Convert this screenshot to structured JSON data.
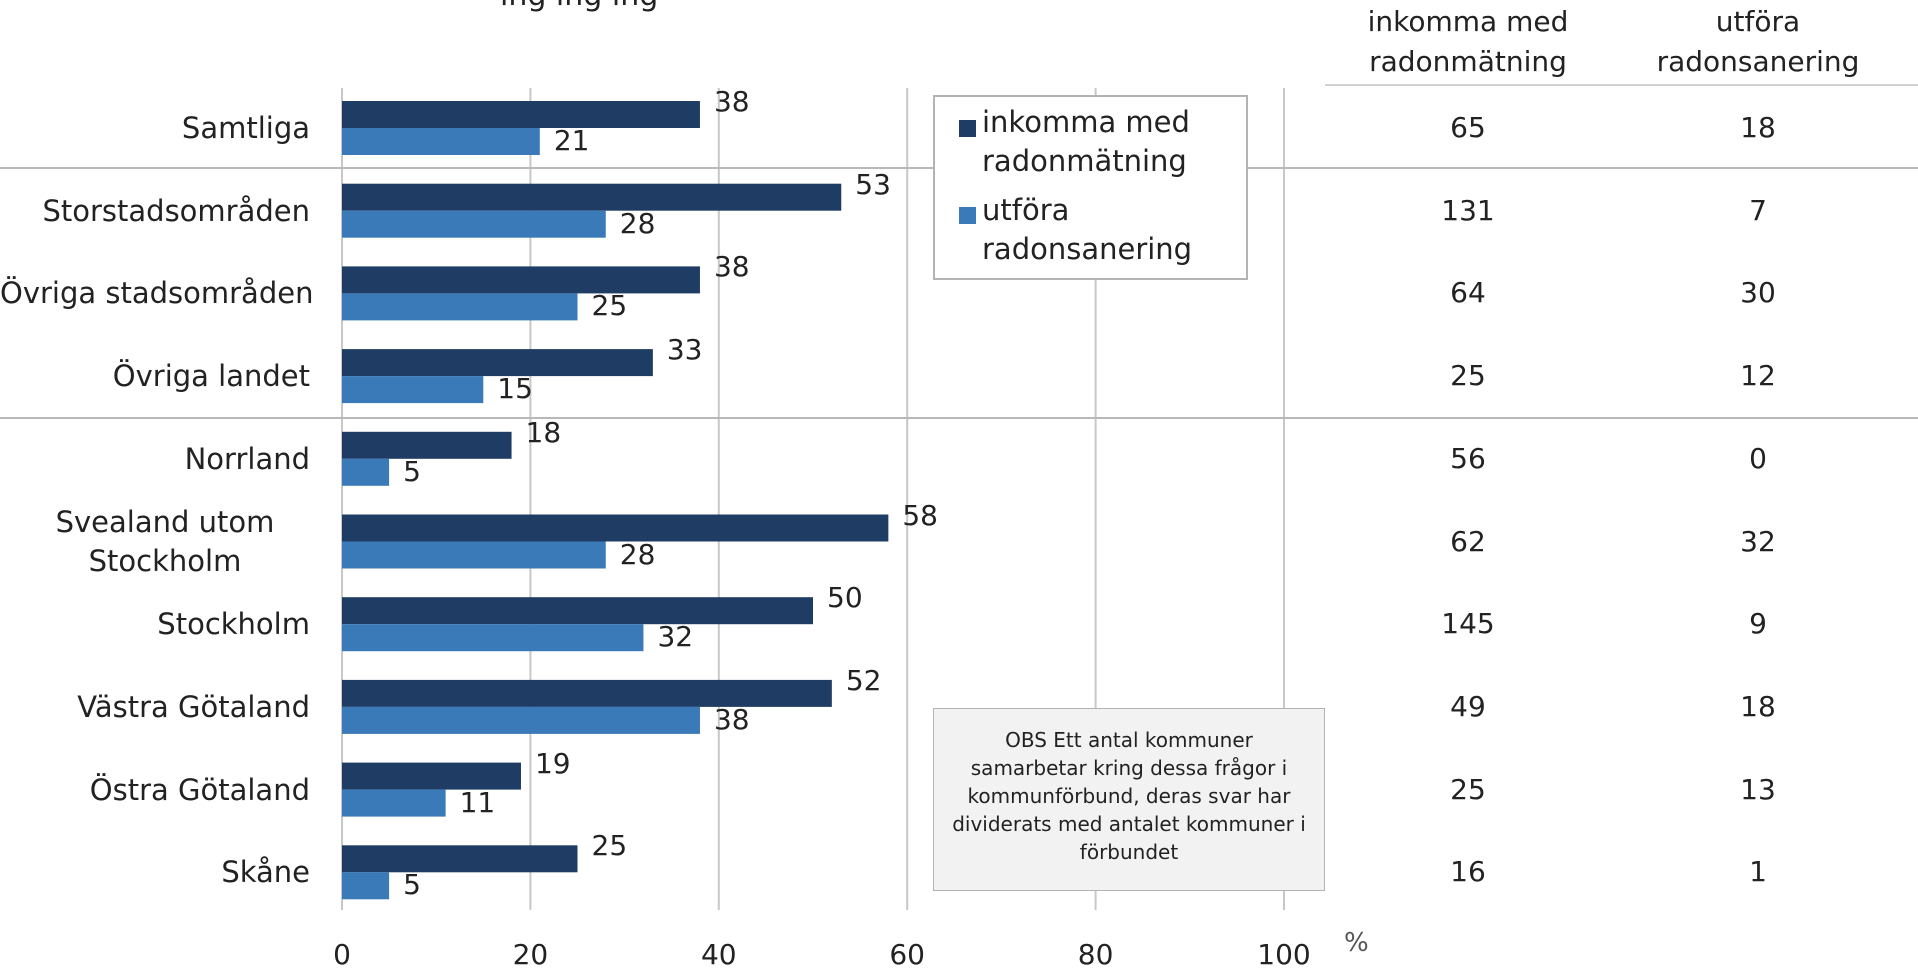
{
  "chart_data": {
    "type": "bar",
    "orientation": "horizontal",
    "title_fragment": "ing   ing  ing",
    "categories": [
      "Samtliga",
      "Storstadsområden",
      "Övriga stadsområden",
      "Övriga landet",
      "Norrland",
      "Svealand utom Stockholm",
      "Stockholm",
      "Västra Götaland",
      "Östra Götaland",
      "Skåne"
    ],
    "series": [
      {
        "name": "inkomma med radonmätning",
        "color": "#1f3d64",
        "values": [
          38,
          53,
          38,
          33,
          18,
          58,
          50,
          52,
          19,
          25
        ]
      },
      {
        "name": "utföra radonsanering",
        "color": "#3b7ab8",
        "values": [
          21,
          28,
          25,
          15,
          5,
          28,
          32,
          38,
          11,
          5
        ]
      }
    ],
    "x_ticks": [
      "0",
      "20",
      "40",
      "60",
      "80",
      "100"
    ],
    "xlim": [
      0,
      100
    ],
    "x_unit": "%",
    "grid": true,
    "legend_position": "top-center",
    "legend": {
      "items": [
        {
          "line1": "inkomma med",
          "line2": "radonmätning"
        },
        {
          "line1": "utföra",
          "line2": "radonsanering"
        }
      ]
    },
    "note": "OBS Ett antal kommuner samarbetar kring dessa frågor i kommunförbund, deras svar har dividerats med antalet kommuner i förbundet",
    "table": {
      "headers": [
        {
          "line1": "inkomma med",
          "line2": "radonmätning"
        },
        {
          "line1": "utföra",
          "line2": "radonsanering"
        }
      ],
      "rows": [
        [
          "65",
          "18"
        ],
        [
          "131",
          "7"
        ],
        [
          "64",
          "30"
        ],
        [
          "25",
          "12"
        ],
        [
          "56",
          "0"
        ],
        [
          "62",
          "32"
        ],
        [
          "145",
          "9"
        ],
        [
          "49",
          "18"
        ],
        [
          "25",
          "13"
        ],
        [
          "16",
          "1"
        ]
      ]
    }
  }
}
